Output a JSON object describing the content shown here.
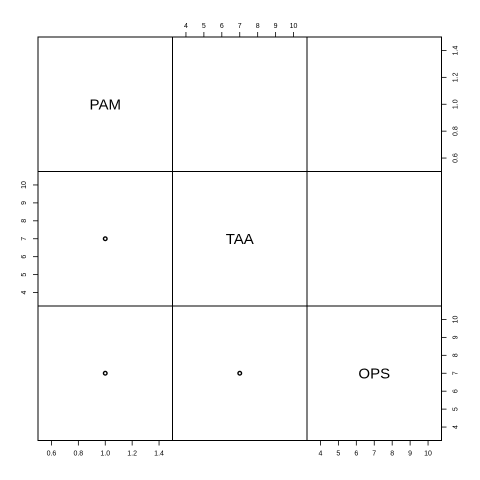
{
  "chart_data": {
    "type": "scatter",
    "subtype": "pairs-matrix",
    "title": "",
    "variables": [
      {
        "name": "PAM",
        "values": [
          1.0
        ],
        "range": [
          0.6,
          1.4
        ],
        "ticks": [
          0.6,
          0.8,
          1.0,
          1.2,
          1.4
        ]
      },
      {
        "name": "TAA",
        "values": [
          7
        ],
        "range": [
          4,
          10
        ],
        "ticks": [
          4,
          5,
          6,
          7,
          8,
          9,
          10
        ]
      },
      {
        "name": "OPS",
        "values": [
          7
        ],
        "range": [
          4,
          10
        ],
        "ticks": [
          4,
          5,
          6,
          7,
          8,
          9,
          10
        ]
      }
    ],
    "tick_labels": {
      "pam": [
        "0.6",
        "0.8",
        "1.0",
        "1.2",
        "1.4"
      ],
      "taa": [
        "4",
        "5",
        "6",
        "7",
        "8",
        "9",
        "10"
      ],
      "ops": [
        "4",
        "5",
        "6",
        "7",
        "8",
        "9",
        "10"
      ]
    },
    "axis_placement": {
      "pam": [
        "bottom",
        "right"
      ],
      "taa": [
        "top",
        "left"
      ],
      "ops": [
        "bottom",
        "right"
      ]
    },
    "grid": false,
    "point_color": "#000000",
    "frame_color": "#000000"
  }
}
